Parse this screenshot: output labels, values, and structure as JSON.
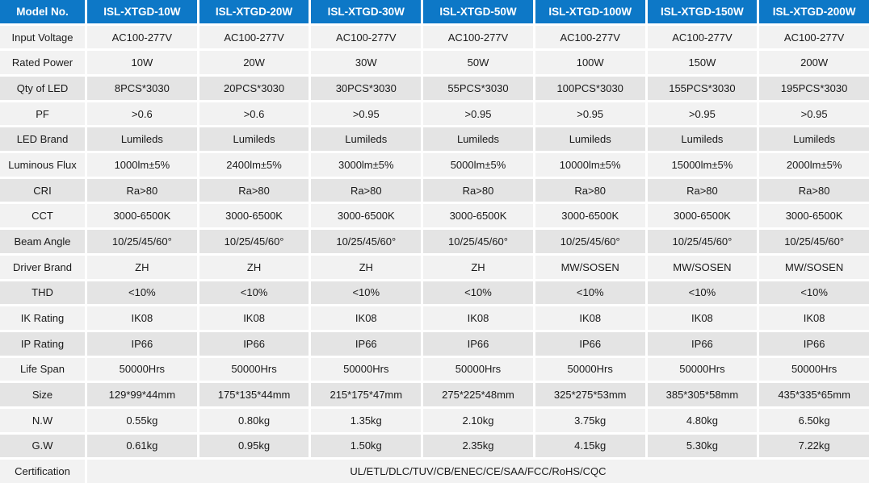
{
  "colors": {
    "header_bg": "#0d78c7",
    "header_text": "#ffffff",
    "row_light": "#f2f2f2",
    "row_dark": "#e4e4e4",
    "gap": "#ffffff",
    "text": "#1a1a1a"
  },
  "table": {
    "header": {
      "label": "Model No.",
      "models": [
        "ISL-XTGD-10W",
        "ISL-XTGD-20W",
        "ISL-XTGD-30W",
        "ISL-XTGD-50W",
        "ISL-XTGD-100W",
        "ISL-XTGD-150W",
        "ISL-XTGD-200W"
      ]
    },
    "rows": [
      {
        "label": "Input Voltage",
        "shade": "light",
        "values": [
          "AC100-277V",
          "AC100-277V",
          "AC100-277V",
          "AC100-277V",
          "AC100-277V",
          "AC100-277V",
          "AC100-277V"
        ]
      },
      {
        "label": "Rated Power",
        "shade": "light",
        "values": [
          "10W",
          "20W",
          "30W",
          "50W",
          "100W",
          "150W",
          "200W"
        ]
      },
      {
        "label": "Qty of LED",
        "shade": "dark",
        "values": [
          "8PCS*3030",
          "20PCS*3030",
          "30PCS*3030",
          "55PCS*3030",
          "100PCS*3030",
          "155PCS*3030",
          "195PCS*3030"
        ]
      },
      {
        "label": "PF",
        "shade": "light",
        "values": [
          ">0.6",
          ">0.6",
          ">0.95",
          ">0.95",
          ">0.95",
          ">0.95",
          ">0.95"
        ]
      },
      {
        "label": "LED Brand",
        "shade": "dark",
        "values": [
          "Lumileds",
          "Lumileds",
          "Lumileds",
          "Lumileds",
          "Lumileds",
          "Lumileds",
          "Lumileds"
        ]
      },
      {
        "label": "Luminous Flux",
        "shade": "light",
        "values": [
          "1000lm±5%",
          "2400lm±5%",
          "3000lm±5%",
          "5000lm±5%",
          "10000lm±5%",
          "15000lm±5%",
          "2000lm±5%"
        ]
      },
      {
        "label": "CRI",
        "shade": "dark",
        "values": [
          "Ra>80",
          "Ra>80",
          "Ra>80",
          "Ra>80",
          "Ra>80",
          "Ra>80",
          "Ra>80"
        ]
      },
      {
        "label": "CCT",
        "shade": "light",
        "values": [
          "3000-6500K",
          "3000-6500K",
          "3000-6500K",
          "3000-6500K",
          "3000-6500K",
          "3000-6500K",
          "3000-6500K"
        ]
      },
      {
        "label": "Beam Angle",
        "shade": "dark",
        "values": [
          "10/25/45/60°",
          "10/25/45/60°",
          "10/25/45/60°",
          "10/25/45/60°",
          "10/25/45/60°",
          "10/25/45/60°",
          "10/25/45/60°"
        ]
      },
      {
        "label": "Driver Brand",
        "shade": "light",
        "values": [
          "ZH",
          "ZH",
          "ZH",
          "ZH",
          "MW/SOSEN",
          "MW/SOSEN",
          "MW/SOSEN"
        ]
      },
      {
        "label": "THD",
        "shade": "dark",
        "values": [
          "<10%",
          "<10%",
          "<10%",
          "<10%",
          "<10%",
          "<10%",
          "<10%"
        ]
      },
      {
        "label": "IK Rating",
        "shade": "light",
        "values": [
          "IK08",
          "IK08",
          "IK08",
          "IK08",
          "IK08",
          "IK08",
          "IK08"
        ]
      },
      {
        "label": "IP Rating",
        "shade": "dark",
        "values": [
          "IP66",
          "IP66",
          "IP66",
          "IP66",
          "IP66",
          "IP66",
          "IP66"
        ]
      },
      {
        "label": "Life Span",
        "shade": "light",
        "values": [
          "50000Hrs",
          "50000Hrs",
          "50000Hrs",
          "50000Hrs",
          "50000Hrs",
          "50000Hrs",
          "50000Hrs"
        ]
      },
      {
        "label": "Size",
        "shade": "dark",
        "values": [
          "129*99*44mm",
          "175*135*44mm",
          "215*175*47mm",
          "275*225*48mm",
          "325*275*53mm",
          "385*305*58mm",
          "435*335*65mm"
        ]
      },
      {
        "label": "N.W",
        "shade": "light",
        "values": [
          "0.55kg",
          "0.80kg",
          "1.35kg",
          "2.10kg",
          "3.75kg",
          "4.80kg",
          "6.50kg"
        ]
      },
      {
        "label": "G.W",
        "shade": "dark",
        "values": [
          "0.61kg",
          "0.95kg",
          "1.50kg",
          "2.35kg",
          "4.15kg",
          "5.30kg",
          "7.22kg"
        ]
      },
      {
        "label": "Certification",
        "shade": "light",
        "span_all": true,
        "values": [
          "UL/ETL/DLC/TUV/CB/ENEC/CE/SAA/FCC/RoHS/CQC"
        ]
      }
    ]
  }
}
